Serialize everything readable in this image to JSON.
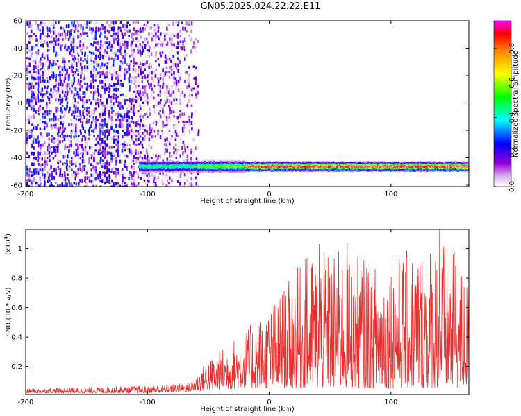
{
  "title": "GN05.2025.024.22.22.E11",
  "chart_data": [
    {
      "type": "heatmap",
      "title": "GN05.2025.024.22.22.E11",
      "xlabel": "Height of straight line (km)",
      "ylabel": "Frequency (Hz)",
      "xlim": [
        -200,
        164
      ],
      "ylim": [
        -61,
        60
      ],
      "xticks": [
        -200,
        -100,
        0,
        100
      ],
      "xtick_labels": [
        "-200",
        "-100",
        "0",
        "100"
      ],
      "yticks": [
        60,
        40,
        20,
        0,
        -20,
        -40,
        -60
      ],
      "ytick_labels": [
        "60",
        "40",
        "20",
        "0",
        "-20",
        "-40",
        "-60"
      ],
      "grid": false,
      "colorbar": {
        "label": "Normalized spectral amplitude",
        "ticks": [
          0.0,
          0.2,
          0.4,
          0.6,
          0.8
        ],
        "tick_labels": [
          "0.0",
          "0.2",
          "0.4",
          "0.6",
          "0.8"
        ],
        "range": [
          0,
          0.96
        ],
        "colors": [
          "#ffffff",
          "#9400d3",
          "#0000ff",
          "#00ffff",
          "#00ff00",
          "#ffff00",
          "#ff8000",
          "#ff0000",
          "#ff00ff"
        ]
      },
      "noise_region": {
        "x": [
          -200,
          -58
        ],
        "amplitude_max": 0.3
      },
      "signal_band": {
        "frequency": -46,
        "x_start": -107,
        "x_end": 164,
        "peak_amplitude": 0.95
      }
    },
    {
      "type": "line",
      "xlabel": "Height of straight line (km)",
      "ylabel": "SNR (10 * v/v)",
      "y_multiplier_label": "(x10",
      "y_multiplier_exp": "4",
      "y_multiplier_close": ")",
      "xlim": [
        -200,
        164
      ],
      "ylim": [
        0.01,
        1.13
      ],
      "xticks": [
        -200,
        -100,
        0,
        100
      ],
      "xtick_labels": [
        "-200",
        "-100",
        "0",
        "100"
      ],
      "yticks": [
        0.2,
        0.4,
        0.6,
        0.8,
        1.0
      ],
      "ytick_labels": [
        "0.2",
        "0.4",
        "0.6",
        "0.8",
        "1"
      ],
      "grid": false,
      "color": "#e8302f",
      "envelope": [
        {
          "x": -200,
          "low": 0.02,
          "high": 0.05
        },
        {
          "x": -100,
          "low": 0.02,
          "high": 0.07
        },
        {
          "x": -65,
          "low": 0.03,
          "high": 0.09
        },
        {
          "x": -50,
          "low": 0.04,
          "high": 0.25
        },
        {
          "x": -20,
          "low": 0.05,
          "high": 0.45
        },
        {
          "x": 0,
          "low": 0.05,
          "high": 0.6
        },
        {
          "x": 30,
          "low": 0.05,
          "high": 0.95
        },
        {
          "x": 60,
          "low": 0.05,
          "high": 1.0
        },
        {
          "x": 90,
          "low": 0.05,
          "high": 0.9
        },
        {
          "x": 140,
          "low": 0.05,
          "high": 1.1
        },
        {
          "x": 164,
          "low": 0.05,
          "high": 0.8
        }
      ],
      "peaks": [
        {
          "x": 30,
          "y": 0.93
        },
        {
          "x": 41,
          "y": 1.03
        },
        {
          "x": 64,
          "y": 1.04
        },
        {
          "x": 80,
          "y": 0.87
        },
        {
          "x": 112,
          "y": 0.84
        },
        {
          "x": 140,
          "y": 1.13
        },
        {
          "x": 152,
          "y": 0.98
        }
      ]
    }
  ]
}
